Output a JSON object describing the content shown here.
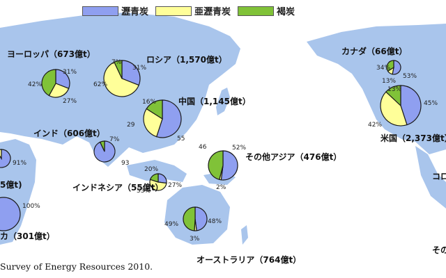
{
  "legend": [
    {
      "label": "瀝青炭",
      "color": "#8f9ff0"
    },
    {
      "label": "亜瀝青炭",
      "color": "#ffff99"
    },
    {
      "label": "褐炭",
      "color": "#80c238"
    }
  ],
  "colors": {
    "land": "#a9c5ec",
    "outline": "#1a1a1a"
  },
  "regions": [
    {
      "id": "europe",
      "name": "ヨーロッパ（673億t）",
      "shares": [
        31,
        27,
        42
      ],
      "shown": [
        "31%",
        "27%",
        "42%"
      ]
    },
    {
      "id": "russia",
      "name": "ロシア（1,570億t）",
      "shares": [
        31,
        62,
        7
      ],
      "shown": [
        "31%",
        "62%",
        "7%"
      ]
    },
    {
      "id": "india",
      "name": "インド（606億t）",
      "shares": [
        93,
        0,
        7
      ],
      "shown": [
        "93",
        "7%"
      ]
    },
    {
      "id": "china",
      "name": "中国（1,145億t）",
      "shares": [
        55,
        29,
        16
      ],
      "shown": [
        "55",
        "29",
        "16%"
      ]
    },
    {
      "id": "other_asia",
      "name": "その他アジア（476億t）",
      "shares": [
        52,
        2,
        46
      ],
      "shown": [
        "52%",
        "2%",
        "46"
      ]
    },
    {
      "id": "indonesia",
      "name": "インドネシア（55億t）",
      "shares": [
        27,
        53,
        20
      ],
      "shown": [
        "27%",
        "53%",
        "20%"
      ]
    },
    {
      "id": "australia",
      "name": "オーストラリア（764億t）",
      "shares": [
        48,
        3,
        49
      ],
      "shown": [
        "48%",
        "3%",
        "49%"
      ]
    },
    {
      "id": "canada",
      "name": "カナダ（66億t）",
      "shares": [
        53,
        13,
        34
      ],
      "shown": [
        "53%",
        "13%",
        "34%"
      ]
    },
    {
      "id": "usa",
      "name": "米国（2,373億t）",
      "shares": [
        45,
        42,
        13
      ],
      "shown": [
        "45%",
        "42%",
        "13%"
      ]
    },
    {
      "id": "middle_east",
      "name": "",
      "shares": [
        91,
        9,
        0
      ],
      "shown": [
        "91%"
      ]
    },
    {
      "id": "africa",
      "name": "カ（301億t）",
      "shares": [
        100,
        0,
        0
      ],
      "shown": [
        "100%"
      ]
    }
  ],
  "edge_fragments": [
    "5億t)",
    "コロ",
    "その"
  ],
  "source": "Survey of Energy Resources 2010."
}
